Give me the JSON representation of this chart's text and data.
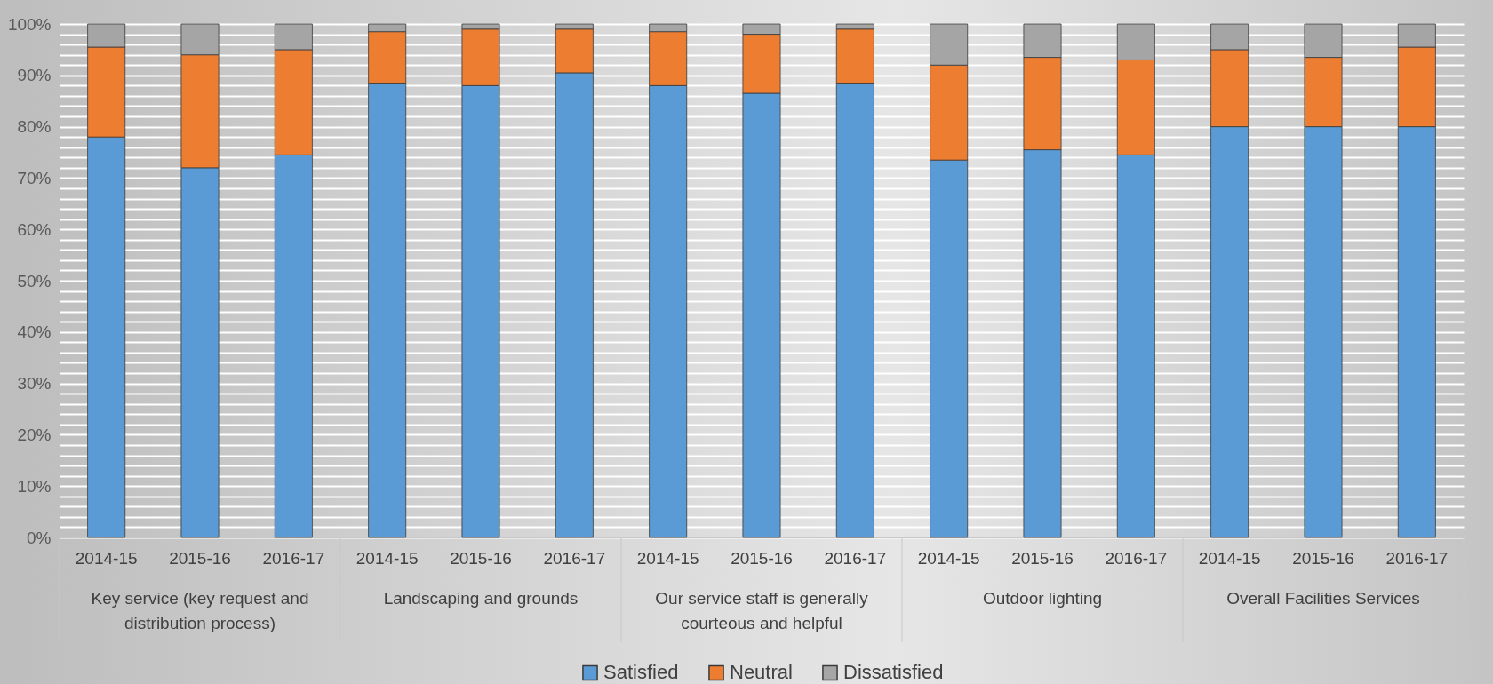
{
  "chart_data": {
    "type": "bar",
    "stacked": true,
    "categories": [
      "2014-15",
      "2015-16",
      "2016-17",
      "2014-15",
      "2015-16",
      "2016-17",
      "2014-15",
      "2015-16",
      "2016-17",
      "2014-15",
      "2015-16",
      "2016-17",
      "2014-15",
      "2015-16",
      "2016-17"
    ],
    "annotations": [
      "Key service (key request and distribution process)",
      "Landscaping and grounds",
      "Our service staff is generally courteous and helpful",
      "Outdoor lighting",
      "Overall Facilities Services"
    ],
    "series": [
      {
        "name": "Satisfied",
        "color": "#5b9bd5",
        "values": [
          78,
          72,
          74.5,
          88.5,
          88,
          90.5,
          88,
          86.5,
          88.5,
          73.5,
          75.5,
          74.5,
          80,
          80,
          80
        ]
      },
      {
        "name": "Neutral",
        "color": "#ed7d31",
        "values": [
          17.5,
          22,
          20.5,
          10,
          11,
          8.5,
          10.5,
          11.5,
          10.5,
          18.5,
          18,
          18.5,
          15,
          13.5,
          15.5
        ]
      },
      {
        "name": "Dissatisfied",
        "color": "#a5a5a5",
        "values": [
          4.5,
          6,
          5,
          1.5,
          1,
          1,
          1.5,
          2,
          1,
          8,
          6.5,
          7,
          5,
          6.5,
          4.5
        ]
      }
    ],
    "ylim": [
      0,
      100
    ],
    "yticks": [
      {
        "value": 0,
        "label": "0%"
      },
      {
        "value": 2,
        "label": null
      },
      {
        "value": 4,
        "label": null
      },
      {
        "value": 6,
        "label": null
      },
      {
        "value": 8,
        "label": null
      },
      {
        "value": 10,
        "label": "10%"
      },
      {
        "value": 12,
        "label": null
      },
      {
        "value": 14,
        "label": null
      },
      {
        "value": 16,
        "label": null
      },
      {
        "value": 18,
        "label": null
      },
      {
        "value": 20,
        "label": "20%"
      },
      {
        "value": 22,
        "label": null
      },
      {
        "value": 24,
        "label": null
      },
      {
        "value": 26,
        "label": null
      },
      {
        "value": 28,
        "label": null
      },
      {
        "value": 30,
        "label": "30%"
      },
      {
        "value": 32,
        "label": null
      },
      {
        "value": 34,
        "label": null
      },
      {
        "value": 36,
        "label": null
      },
      {
        "value": 38,
        "label": null
      },
      {
        "value": 40,
        "label": "40%"
      },
      {
        "value": 42,
        "label": null
      },
      {
        "value": 44,
        "label": null
      },
      {
        "value": 46,
        "label": null
      },
      {
        "value": 48,
        "label": null
      },
      {
        "value": 50,
        "label": "50%"
      },
      {
        "value": 52,
        "label": null
      },
      {
        "value": 54,
        "label": null
      },
      {
        "value": 56,
        "label": null
      },
      {
        "value": 58,
        "label": null
      },
      {
        "value": 60,
        "label": "60%"
      },
      {
        "value": 62,
        "label": null
      },
      {
        "value": 64,
        "label": null
      },
      {
        "value": 66,
        "label": null
      },
      {
        "value": 68,
        "label": null
      },
      {
        "value": 70,
        "label": "70%"
      },
      {
        "value": 72,
        "label": null
      },
      {
        "value": 74,
        "label": null
      },
      {
        "value": 76,
        "label": null
      },
      {
        "value": 78,
        "label": null
      },
      {
        "value": 80,
        "label": "80%"
      },
      {
        "value": 82,
        "label": null
      },
      {
        "value": 84,
        "label": null
      },
      {
        "value": 86,
        "label": null
      },
      {
        "value": 88,
        "label": null
      },
      {
        "value": 90,
        "label": "90%"
      },
      {
        "value": 92,
        "label": null
      },
      {
        "value": 94,
        "label": null
      },
      {
        "value": 96,
        "label": null
      },
      {
        "value": 98,
        "label": null
      },
      {
        "value": 100,
        "label": "100%"
      }
    ],
    "grid": true,
    "legend": "bottom"
  }
}
